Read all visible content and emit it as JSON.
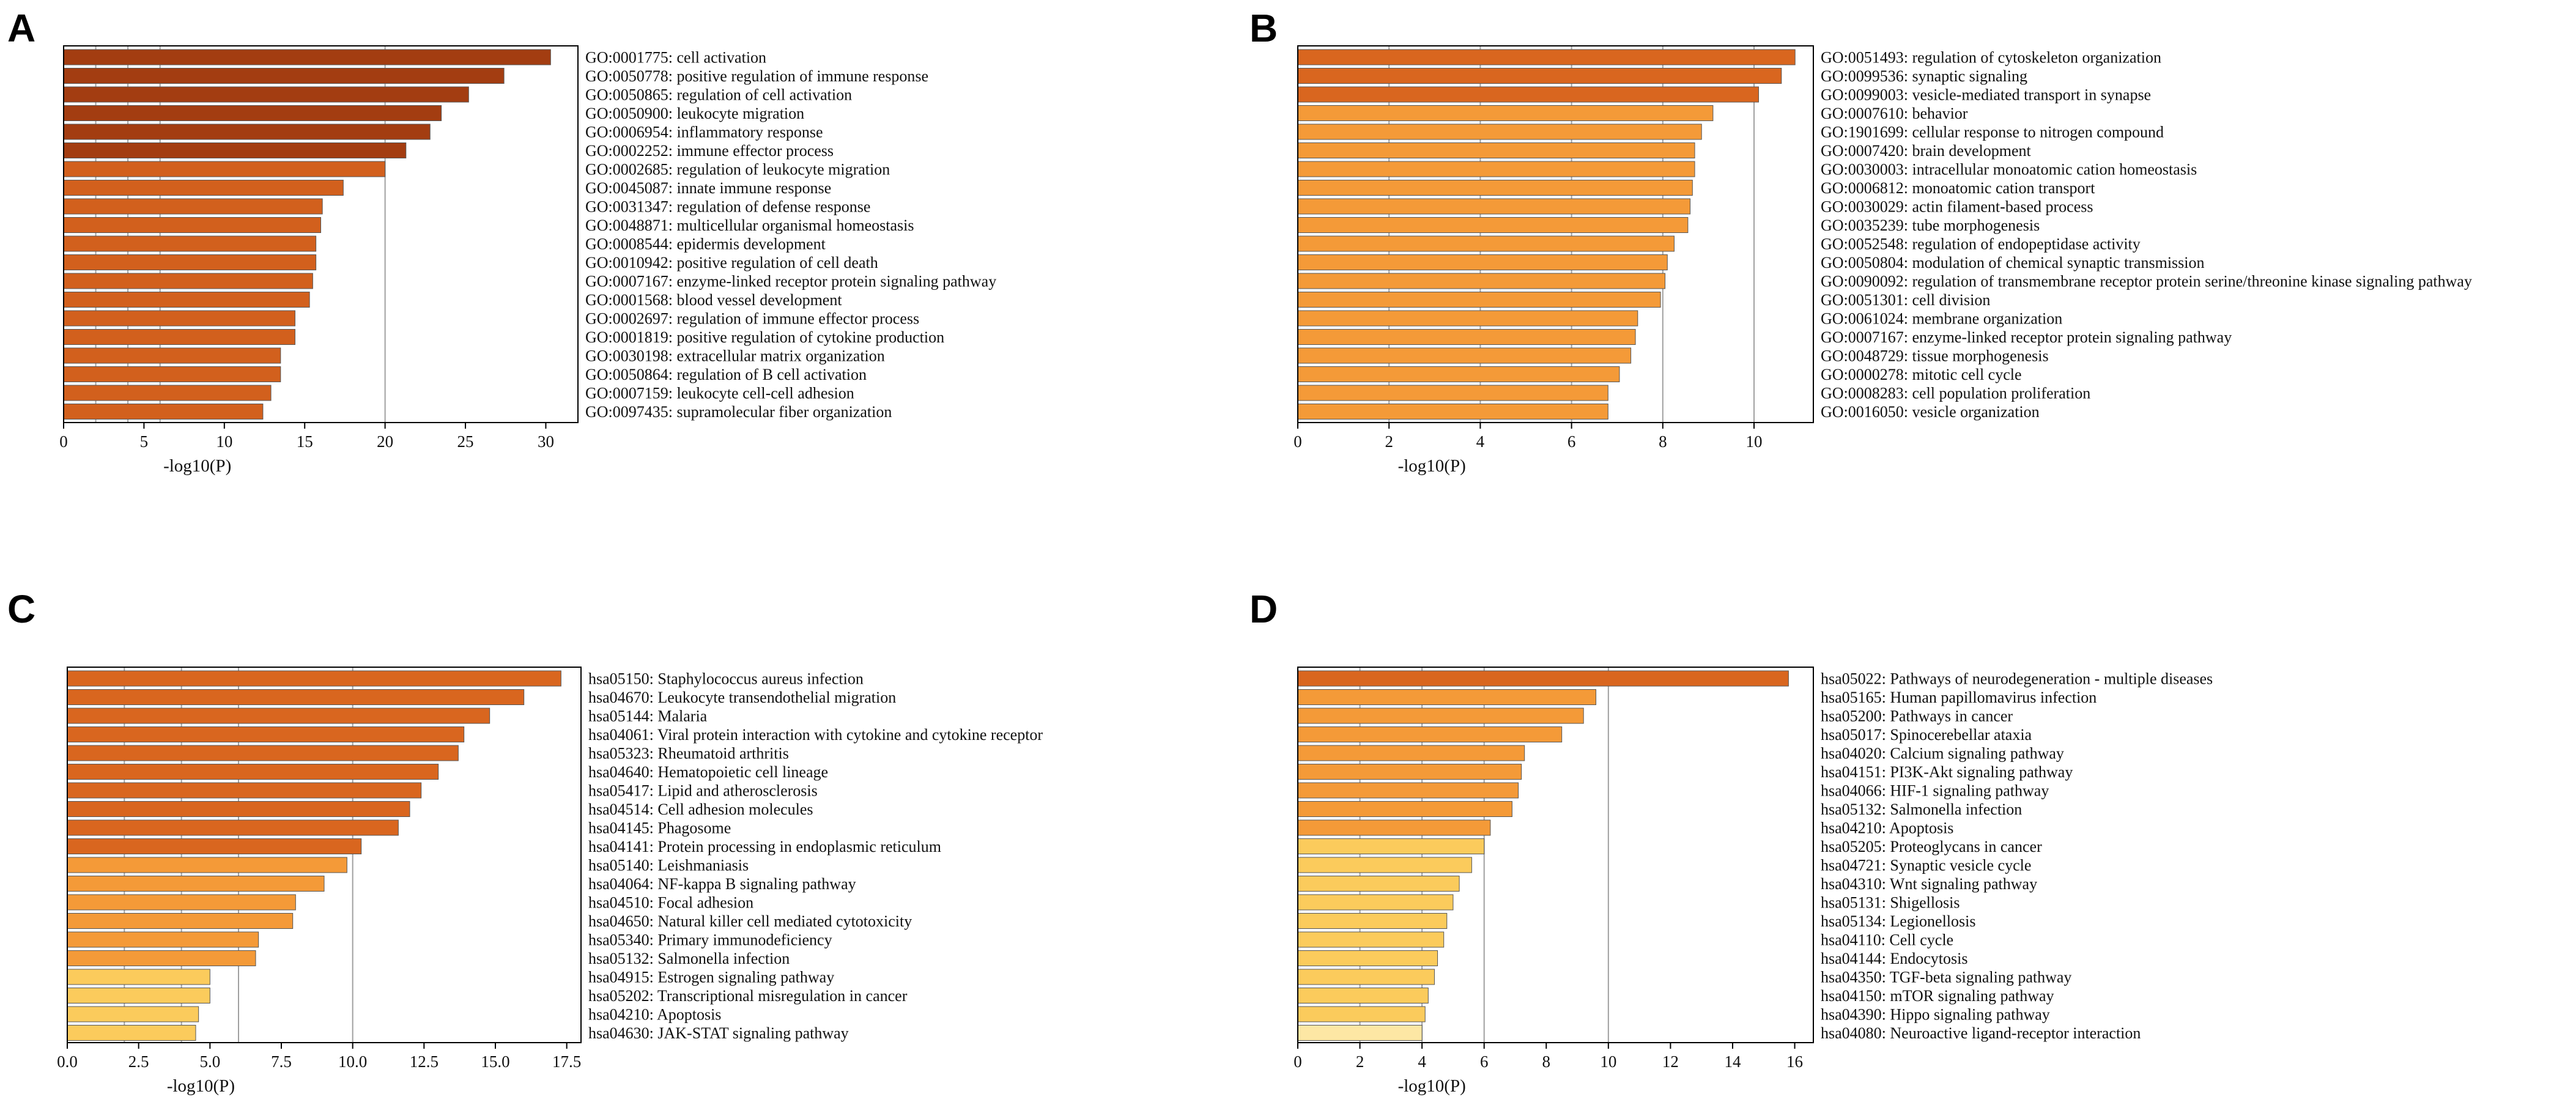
{
  "chart_data": [
    {
      "panel": "A",
      "type": "bar",
      "orientation": "horizontal",
      "xlabel": "-log10(P)",
      "xlim": [
        0,
        32
      ],
      "ticks": [
        "0",
        "5",
        "10",
        "15",
        "20",
        "25",
        "30"
      ],
      "tick_values": [
        0,
        5,
        10,
        15,
        20,
        25,
        30
      ],
      "grid_values": [
        2,
        4,
        6,
        20
      ],
      "categories": [
        "GO:0001775: cell activation",
        "GO:0050778: positive regulation of immune response",
        "GO:0050865: regulation of cell activation",
        "GO:0050900: leukocyte migration",
        "GO:0006954: inflammatory response",
        "GO:0002252: immune effector process",
        "GO:0002685: regulation of leukocyte migration",
        "GO:0045087: innate immune response",
        "GO:0031347: regulation of defense response",
        "GO:0048871: multicellular organismal homeostasis",
        "GO:0008544: epidermis development",
        "GO:0010942: positive regulation of cell death",
        "GO:0007167: enzyme-linked receptor protein signaling pathway",
        "GO:0001568: blood vessel development",
        "GO:0002697: regulation of immune effector process",
        "GO:0001819: positive regulation of cytokine production",
        "GO:0030198: extracellular matrix organization",
        "GO:0050864: regulation of B cell activation",
        "GO:0007159: leukocyte cell-cell adhesion",
        "GO:0097435: supramolecular fiber organization"
      ],
      "values": [
        30.3,
        27.4,
        25.2,
        23.5,
        22.8,
        21.3,
        20.0,
        17.4,
        16.1,
        16.0,
        15.7,
        15.7,
        15.5,
        15.3,
        14.4,
        14.4,
        13.5,
        13.5,
        12.9,
        12.4
      ],
      "colors": [
        "#a33d11",
        "#a33d11",
        "#a33d11",
        "#a33d11",
        "#a33d11",
        "#a33d11",
        "#d2601d",
        "#d2601d",
        "#d2601d",
        "#d2601d",
        "#d2601d",
        "#d2601d",
        "#d2601d",
        "#d2601d",
        "#d2601d",
        "#d2601d",
        "#d2601d",
        "#d2601d",
        "#d2601d",
        "#d2601d"
      ]
    },
    {
      "panel": "B",
      "type": "bar",
      "orientation": "horizontal",
      "xlabel": "-log10(P)",
      "xlim": [
        0,
        11.3
      ],
      "ticks": [
        "0",
        "2",
        "4",
        "6",
        "8",
        "10"
      ],
      "tick_values": [
        0,
        2,
        4,
        6,
        8,
        10
      ],
      "grid_values": [
        2,
        4,
        6,
        8,
        10
      ],
      "categories": [
        "GO:0051493: regulation of cytoskeleton organization",
        "GO:0099536: synaptic signaling",
        "GO:0099003: vesicle-mediated transport in synapse",
        "GO:0007610: behavior",
        "GO:1901699: cellular response to nitrogen compound",
        "GO:0007420: brain development",
        "GO:0030003: intracellular monoatomic cation homeostasis",
        "GO:0006812: monoatomic cation transport",
        "GO:0030029: actin filament-based process",
        "GO:0035239: tube morphogenesis",
        "GO:0052548: regulation of endopeptidase activity",
        "GO:0050804: modulation of chemical synaptic transmission",
        "GO:0090092: regulation of transmembrane receptor protein serine/threonine kinase signaling pathway",
        "GO:0051301: cell division",
        "GO:0061024: membrane organization",
        "GO:0007167: enzyme-linked receptor protein signaling pathway",
        "GO:0048729: tissue morphogenesis",
        "GO:0000278: mitotic cell cycle",
        "GO:0008283: cell population proliferation",
        "GO:0016050: vesicle organization"
      ],
      "values": [
        10.9,
        10.6,
        10.1,
        9.1,
        8.85,
        8.7,
        8.7,
        8.65,
        8.6,
        8.55,
        8.25,
        8.1,
        8.05,
        7.95,
        7.45,
        7.4,
        7.3,
        7.05,
        6.8,
        6.8
      ],
      "colors": [
        "#d9661f",
        "#d9661f",
        "#d9661f",
        "#f49a38",
        "#f49a38",
        "#f49a38",
        "#f49a38",
        "#f49a38",
        "#f49a38",
        "#f49a38",
        "#f49a38",
        "#f49a38",
        "#f49a38",
        "#f49a38",
        "#f49a38",
        "#f49a38",
        "#f49a38",
        "#f49a38",
        "#f49a38",
        "#f49a38"
      ]
    },
    {
      "panel": "C",
      "type": "bar",
      "orientation": "horizontal",
      "xlabel": "-log10(P)",
      "xlim": [
        0,
        18
      ],
      "ticks": [
        "0.0",
        "2.5",
        "5.0",
        "7.5",
        "10.0",
        "12.5",
        "15.0",
        "17.5"
      ],
      "tick_values": [
        0,
        2.5,
        5,
        7.5,
        10,
        12.5,
        15,
        17.5
      ],
      "grid_values": [
        2,
        4,
        6,
        10
      ],
      "categories": [
        "hsa05150: Staphylococcus aureus infection",
        "hsa04670: Leukocyte transendothelial migration",
        "hsa05144: Malaria",
        "hsa04061: Viral protein interaction with cytokine and cytokine receptor",
        "hsa05323: Rheumatoid arthritis",
        "hsa04640: Hematopoietic cell lineage",
        "hsa05417: Lipid and atherosclerosis",
        "hsa04514: Cell adhesion molecules",
        "hsa04145: Phagosome",
        "hsa04141: Protein processing in endoplasmic reticulum",
        "hsa05140: Leishmaniasis",
        "hsa04064: NF-kappa B signaling pathway",
        "hsa04510: Focal adhesion",
        "hsa04650: Natural killer cell mediated cytotoxicity",
        "hsa05340: Primary immunodeficiency",
        "hsa05132: Salmonella infection",
        "hsa04915: Estrogen signaling pathway",
        "hsa05202: Transcriptional misregulation in cancer",
        "hsa04210: Apoptosis",
        "hsa04630: JAK-STAT signaling pathway"
      ],
      "values": [
        17.3,
        16.0,
        14.8,
        13.9,
        13.7,
        13.0,
        12.4,
        12.0,
        11.6,
        10.3,
        9.8,
        9.0,
        8.0,
        7.9,
        6.7,
        6.6,
        5.0,
        5.0,
        4.6,
        4.5
      ],
      "colors": [
        "#d9661f",
        "#d9661f",
        "#d9661f",
        "#d9661f",
        "#d9661f",
        "#d9661f",
        "#d9661f",
        "#d9661f",
        "#d9661f",
        "#d9661f",
        "#f49a38",
        "#f49a38",
        "#f49a38",
        "#f49a38",
        "#f49a38",
        "#f49a38",
        "#fbcb5c",
        "#fbcb5c",
        "#fbcb5c",
        "#fbcb5c"
      ]
    },
    {
      "panel": "D",
      "type": "bar",
      "orientation": "horizontal",
      "xlabel": "-log10(P)",
      "xlim": [
        0,
        16.6
      ],
      "ticks": [
        "0",
        "2",
        "4",
        "6",
        "8",
        "10",
        "12",
        "14",
        "16"
      ],
      "tick_values": [
        0,
        2,
        4,
        6,
        8,
        10,
        12,
        14,
        16
      ],
      "grid_values": [
        2,
        4,
        6,
        10
      ],
      "categories": [
        "hsa05022: Pathways of neurodegeneration - multiple diseases",
        "hsa05165: Human papillomavirus infection",
        "hsa05200: Pathways in cancer",
        "hsa05017: Spinocerebellar ataxia",
        "hsa04020: Calcium signaling pathway",
        "hsa04151: PI3K-Akt signaling pathway",
        "hsa04066: HIF-1 signaling pathway",
        "hsa05132: Salmonella infection",
        "hsa04210: Apoptosis",
        "hsa05205: Proteoglycans in cancer",
        "hsa04721: Synaptic vesicle cycle",
        "hsa04310: Wnt signaling pathway",
        "hsa05131: Shigellosis",
        "hsa05134: Legionellosis",
        "hsa04110: Cell cycle",
        "hsa04144: Endocytosis",
        "hsa04350: TGF-beta signaling pathway",
        "hsa04150: mTOR signaling pathway",
        "hsa04390: Hippo signaling pathway",
        "hsa04080: Neuroactive ligand-receptor interaction"
      ],
      "values": [
        15.8,
        9.6,
        9.2,
        8.5,
        7.3,
        7.2,
        7.1,
        6.9,
        6.2,
        6.0,
        5.6,
        5.2,
        5.0,
        4.8,
        4.7,
        4.5,
        4.4,
        4.2,
        4.1,
        4.0
      ],
      "colors": [
        "#d9661f",
        "#f49a38",
        "#f49a38",
        "#f49a38",
        "#f49a38",
        "#f49a38",
        "#f49a38",
        "#f49a38",
        "#f49a38",
        "#fbcb5c",
        "#fbcb5c",
        "#fbcb5c",
        "#fbcb5c",
        "#fbcb5c",
        "#fbcb5c",
        "#fbcb5c",
        "#fbcb5c",
        "#fbcb5c",
        "#fbcb5c",
        "#fde7a4"
      ]
    }
  ]
}
